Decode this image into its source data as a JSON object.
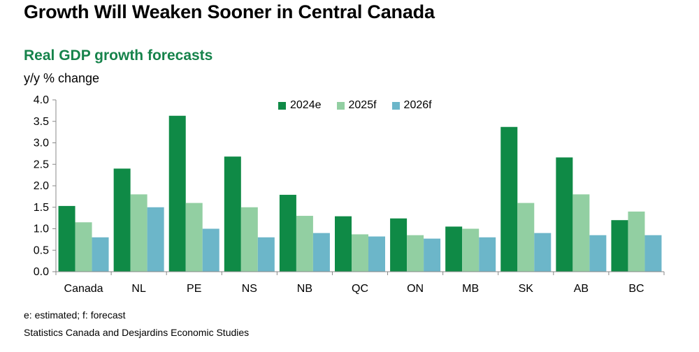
{
  "title": "Growth Will Weaken Sooner in Central Canada",
  "subtitle": "Real GDP growth forecasts",
  "ylabel": "y/y % change",
  "notes": {
    "estimate_note": "e: estimated; f: forecast",
    "source": "Statistics Canada and Desjardins Economic Studies"
  },
  "colors": {
    "subtitle": "#16834b",
    "series_2024e": "#0f8a46",
    "series_2025f": "#92cfa2",
    "series_2026f": "#6cb6c9",
    "axis": "#888888"
  },
  "legend": {
    "items": [
      "2024e",
      "2025f",
      "2026f"
    ],
    "placement": "top-center"
  },
  "chart_data": {
    "type": "bar",
    "title": "Real GDP growth forecasts",
    "ylabel": "y/y % change",
    "xlabel": "",
    "ylim": [
      0,
      4
    ],
    "yticks": [
      "0.0",
      "0.5",
      "1.0",
      "1.5",
      "2.0",
      "2.5",
      "3.0",
      "3.5",
      "4.0"
    ],
    "grid": false,
    "categories": [
      "Canada",
      "NL",
      "PE",
      "NS",
      "NB",
      "QC",
      "ON",
      "MB",
      "SK",
      "AB",
      "BC"
    ],
    "series": [
      {
        "name": "2024e",
        "values": [
          1.53,
          2.4,
          3.63,
          2.68,
          1.79,
          1.29,
          1.24,
          1.05,
          3.37,
          2.66,
          1.2
        ]
      },
      {
        "name": "2025f",
        "values": [
          1.15,
          1.8,
          1.6,
          1.5,
          1.3,
          0.87,
          0.85,
          1.0,
          1.6,
          1.8,
          1.4
        ]
      },
      {
        "name": "2026f",
        "values": [
          0.8,
          1.5,
          1.0,
          0.8,
          0.9,
          0.82,
          0.77,
          0.8,
          0.9,
          0.85,
          0.85
        ]
      }
    ]
  }
}
